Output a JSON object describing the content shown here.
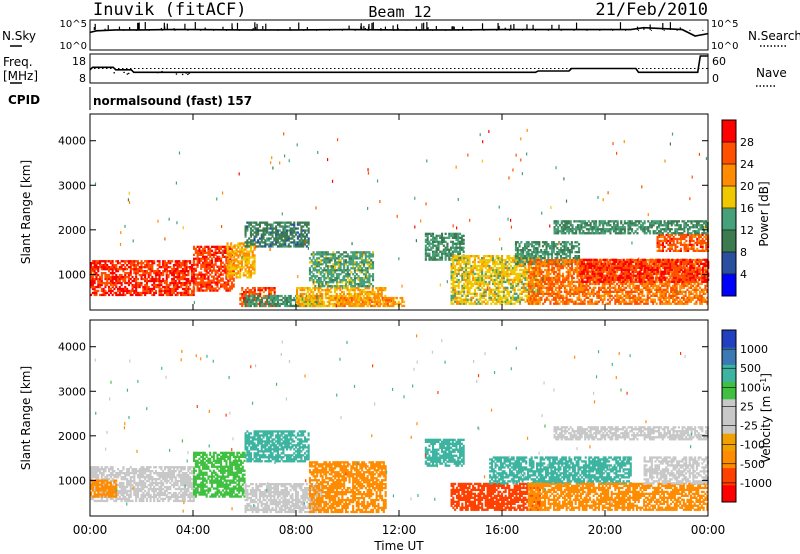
{
  "header": {
    "station": "Inuvik (fitACF)",
    "beam": "Beam 12",
    "date": "21/Feb/2010"
  },
  "side_labels": {
    "nsky": "N.Sky",
    "nsearch": "N.Search",
    "freq_line1": "Freq.",
    "freq_line2": "[MHz]",
    "nave": "Nave",
    "cpid": "CPID",
    "cpid_value": "normalsound (fast) 157",
    "noise_tick_top_left": "10^5",
    "noise_tick_bottom_left": "10^0",
    "noise_tick_top_right": "10^5",
    "noise_tick_bottom_right": "10^0",
    "freq_tick_top": "18",
    "freq_tick_bottom": "8",
    "nave_tick_top": "60",
    "nave_tick_bottom": "0"
  },
  "colors": {
    "power_scale": [
      "#0000ff",
      "#2a4fa0",
      "#3c7a50",
      "#46a07a",
      "#f0c800",
      "#ff8c00",
      "#ff5000",
      "#ff0000"
    ],
    "velocity_scale": [
      "#ff0000",
      "#ff4000",
      "#ff8c00",
      "#f0a000",
      "#c8c8c8",
      "#c8c8c8",
      "#40c040",
      "#3cb4a0",
      "#3c78b4",
      "#2040c0"
    ],
    "velocity_gray": "#c8c8c8"
  },
  "chart_data": [
    {
      "type": "line",
      "name": "noise",
      "xlabel": "",
      "ylabel": "",
      "x_range_hours": [
        0,
        24
      ],
      "y_scale": "log",
      "y_ticks": [
        "10^0",
        "10^5"
      ],
      "description_series": [
        "N.Sky",
        "N.Search"
      ],
      "x": [
        0,
        0.25,
        1,
        2,
        3,
        4,
        6,
        8,
        10,
        12,
        14,
        16,
        18,
        20,
        21,
        21.5,
        23,
        23.5,
        24
      ],
      "nsky": [
        1000,
        2000,
        3000,
        3000,
        3500,
        3500,
        3000,
        3000,
        3500,
        3000,
        3000,
        3500,
        3500,
        3500,
        3500,
        8000,
        3500,
        200,
        600
      ]
    },
    {
      "type": "line",
      "name": "frequency_nave",
      "y_left_label": "Freq. [MHz]",
      "y_left_range": [
        8,
        18
      ],
      "y_right_label": "Nave",
      "y_right_range": [
        0,
        60
      ],
      "x": [
        0,
        0.1,
        0.9,
        1,
        1.6,
        1.7,
        17.3,
        17.4,
        18.6,
        18.7,
        21.2,
        21.3,
        23.6,
        23.7,
        24
      ],
      "freq_mhz": [
        12.5,
        13.5,
        13.5,
        12.5,
        12.5,
        11.5,
        11.5,
        12,
        12,
        13,
        13,
        11.5,
        11.5,
        18,
        18
      ],
      "nave_dotted_level": 30
    },
    {
      "type": "heatmap",
      "name": "power",
      "title": "",
      "xlabel": "Time UT",
      "ylabel": "Slant Range [km]",
      "colorbar_label": "Power [dB]",
      "colorbar_ticks": [
        4,
        8,
        12,
        16,
        20,
        24,
        28
      ],
      "colorbar_range": [
        0,
        32
      ],
      "x_ticks": [
        "00:00",
        "04:00",
        "08:00",
        "12:00",
        "16:00",
        "20:00",
        "00:00"
      ],
      "x_range_hours": [
        0,
        24
      ],
      "y_range": [
        200,
        4600
      ],
      "y_ticks": [
        1000,
        2000,
        3000,
        4000
      ],
      "regions": [
        {
          "t0": 0.0,
          "t1": 4.0,
          "r0": 500,
          "r1": 1300,
          "value": 28
        },
        {
          "t0": 4.0,
          "t1": 5.6,
          "r0": 600,
          "r1": 1600,
          "value": 27
        },
        {
          "t0": 5.3,
          "t1": 6.4,
          "r0": 900,
          "r1": 1700,
          "value": 20
        },
        {
          "t0": 5.8,
          "t1": 7.2,
          "r0": 250,
          "r1": 700,
          "value": 26
        },
        {
          "t0": 6.0,
          "t1": 9.0,
          "r0": 250,
          "r1": 500,
          "value": 12
        },
        {
          "t0": 6.0,
          "t1": 8.5,
          "r0": 1600,
          "r1": 2150,
          "value": 10
        },
        {
          "t0": 8.0,
          "t1": 11.5,
          "r0": 250,
          "r1": 700,
          "value": 20
        },
        {
          "t0": 8.5,
          "t1": 11.0,
          "r0": 700,
          "r1": 1500,
          "value": 14
        },
        {
          "t0": 9.5,
          "t1": 12.2,
          "r0": 250,
          "r1": 450,
          "value": 22
        },
        {
          "t0": 13.0,
          "t1": 14.5,
          "r0": 1300,
          "r1": 1900,
          "value": 12
        },
        {
          "t0": 14.0,
          "t1": 17.5,
          "r0": 300,
          "r1": 1400,
          "value": 18
        },
        {
          "t0": 16.5,
          "t1": 19.0,
          "r0": 1200,
          "r1": 1700,
          "value": 12
        },
        {
          "t0": 17.0,
          "t1": 24.0,
          "r0": 300,
          "r1": 1300,
          "value": 24
        },
        {
          "t0": 19.0,
          "t1": 24.0,
          "r0": 800,
          "r1": 1300,
          "value": 28
        },
        {
          "t0": 22.0,
          "t1": 24.0,
          "r0": 1500,
          "r1": 1900,
          "value": 26
        },
        {
          "t0": 18.0,
          "t1": 24.0,
          "r0": 1900,
          "r1": 2200,
          "value": 12
        }
      ]
    },
    {
      "type": "heatmap",
      "name": "velocity",
      "title": "",
      "xlabel": "Time UT",
      "ylabel": "Slant Range [km]",
      "colorbar_label": "Velocity [m s^-1]",
      "colorbar_ticks": [
        1000,
        500,
        100,
        25,
        -25,
        -100,
        -500,
        -1000
      ],
      "x_ticks": [
        "00:00",
        "04:00",
        "08:00",
        "12:00",
        "16:00",
        "20:00",
        "00:00"
      ],
      "x_range_hours": [
        0,
        24
      ],
      "y_range": [
        200,
        4600
      ],
      "y_ticks": [
        1000,
        2000,
        3000,
        4000
      ],
      "regions": [
        {
          "t0": 0.0,
          "t1": 4.0,
          "r0": 500,
          "r1": 1300,
          "value": 100
        },
        {
          "t0": 0.0,
          "t1": 1.0,
          "r0": 600,
          "r1": 1000,
          "value": -300
        },
        {
          "t0": 4.0,
          "t1": 6.0,
          "r0": 600,
          "r1": 1600,
          "value": 150
        },
        {
          "t0": 6.0,
          "t1": 9.0,
          "r0": 250,
          "r1": 900,
          "value": 0
        },
        {
          "t0": 6.0,
          "t1": 8.5,
          "r0": 1400,
          "r1": 2100,
          "value": 900
        },
        {
          "t0": 8.5,
          "t1": 11.5,
          "r0": 250,
          "r1": 1400,
          "value": -400
        },
        {
          "t0": 13.0,
          "t1": 14.5,
          "r0": 1300,
          "r1": 1900,
          "value": 900
        },
        {
          "t0": 14.0,
          "t1": 17.5,
          "r0": 300,
          "r1": 900,
          "value": -500
        },
        {
          "t0": 15.5,
          "t1": 21.0,
          "r0": 900,
          "r1": 1500,
          "value": 900
        },
        {
          "t0": 17.0,
          "t1": 24.0,
          "r0": 300,
          "r1": 900,
          "value": -200
        },
        {
          "t0": 21.5,
          "t1": 24.0,
          "r0": 900,
          "r1": 1500,
          "value": 0
        },
        {
          "t0": 18.0,
          "t1": 24.0,
          "r0": 1900,
          "r1": 2200,
          "value": 100
        }
      ]
    }
  ]
}
